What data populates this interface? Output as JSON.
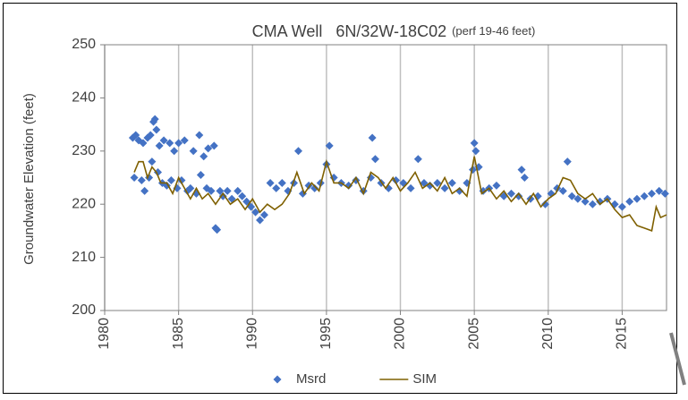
{
  "chart_data": {
    "type": "scatter",
    "title": "CMA Well   6N/32W-18C02",
    "subtitle": "(perf 19-46 feet)",
    "y_label": "Groundwater Elevation (feet)",
    "xlim": [
      1980,
      2018
    ],
    "xticks": [
      1980,
      1985,
      1990,
      1995,
      2000,
      2005,
      2010,
      2015
    ],
    "ylim": [
      200,
      250
    ],
    "yticks": [
      200,
      210,
      220,
      230,
      240,
      250
    ],
    "grid": "x",
    "legend": "bottom",
    "series": [
      {
        "name": "Msrd",
        "color": "#4472c4",
        "marker": "diamond",
        "x": [
          1981.9,
          1982.0,
          1982.1,
          1982.3,
          1982.5,
          1982.6,
          1982.7,
          1982.9,
          1983.0,
          1983.1,
          1983.2,
          1983.3,
          1983.4,
          1983.5,
          1983.6,
          1983.7,
          1983.9,
          1984.0,
          1984.2,
          1984.4,
          1984.5,
          1984.7,
          1984.9,
          1985.0,
          1985.2,
          1985.4,
          1985.6,
          1985.8,
          1986.0,
          1986.2,
          1986.4,
          1986.5,
          1986.7,
          1986.9,
          1987.0,
          1987.2,
          1987.4,
          1987.5,
          1987.6,
          1987.8,
          1988.0,
          1988.3,
          1988.6,
          1989.0,
          1989.3,
          1989.6,
          1989.9,
          1990.2,
          1990.5,
          1990.8,
          1991.2,
          1991.6,
          1992.0,
          1992.4,
          1992.8,
          1993.1,
          1993.4,
          1993.8,
          1994.2,
          1994.6,
          1995.0,
          1995.2,
          1995.5,
          1996.0,
          1996.5,
          1997.0,
          1997.5,
          1998.0,
          1998.1,
          1998.3,
          1998.7,
          1999.2,
          1999.7,
          2000.2,
          2000.7,
          2001.2,
          2001.6,
          2002.0,
          2002.5,
          2003.0,
          2003.5,
          2004.0,
          2004.5,
          2004.9,
          2005.0,
          2005.1,
          2005.3,
          2005.6,
          2006.0,
          2006.5,
          2007.0,
          2007.5,
          2008.0,
          2008.2,
          2008.4,
          2008.8,
          2009.3,
          2009.8,
          2010.2,
          2010.6,
          2011.0,
          2011.3,
          2011.6,
          2012.0,
          2012.5,
          2013.0,
          2013.5,
          2014.0,
          2014.5,
          2015.0,
          2015.5,
          2016.0,
          2016.5,
          2017.0,
          2017.5,
          2017.9
        ],
        "values": [
          232.5,
          225,
          233,
          232,
          224.5,
          231.5,
          222.5,
          232.5,
          225,
          233,
          228,
          235.5,
          236,
          234,
          226,
          231,
          224,
          232,
          223.5,
          231.5,
          224.5,
          230,
          223,
          231.5,
          224.5,
          232,
          222.5,
          223,
          230,
          222,
          233,
          225.5,
          229,
          223,
          230.5,
          222.5,
          231,
          215.5,
          215.2,
          222.5,
          221.5,
          222.5,
          221,
          222.5,
          221.5,
          220.5,
          219.5,
          218.5,
          217,
          218,
          224,
          223,
          224,
          222.5,
          224,
          230,
          222,
          223.5,
          223,
          224,
          227.5,
          231,
          225,
          224,
          223.5,
          224.5,
          222.5,
          225,
          232.5,
          228.5,
          224,
          223,
          224.5,
          224,
          223,
          228.5,
          224,
          223.5,
          224,
          223,
          224,
          222.5,
          224,
          226.5,
          231.5,
          230,
          227,
          222.5,
          223,
          223.5,
          221.5,
          222,
          221.5,
          226.5,
          225,
          221,
          221.5,
          220,
          222,
          223,
          222.5,
          228,
          221.5,
          221,
          220.5,
          220,
          220.5,
          221,
          220,
          219.5,
          220.5,
          221,
          221.5,
          222,
          222.5,
          222
        ]
      },
      {
        "name": "SIM",
        "color": "#7f6000",
        "marker": "line",
        "x": [
          1982,
          1982.3,
          1982.6,
          1982.9,
          1983.2,
          1983.5,
          1983.8,
          1984.2,
          1984.6,
          1985,
          1985.4,
          1985.8,
          1986.2,
          1986.6,
          1987,
          1987.5,
          1988,
          1988.5,
          1989,
          1989.5,
          1990,
          1990.5,
          1991,
          1991.5,
          1992,
          1992.5,
          1993,
          1993.5,
          1994,
          1994.5,
          1995,
          1995.5,
          1996,
          1996.5,
          1997,
          1997.5,
          1998,
          1998.5,
          1999,
          1999.5,
          2000,
          2000.5,
          2001,
          2001.5,
          2002,
          2002.5,
          2003,
          2003.5,
          2004,
          2004.5,
          2005,
          2005.5,
          2006,
          2006.5,
          2007,
          2007.5,
          2008,
          2008.5,
          2009,
          2009.5,
          2010,
          2010.5,
          2011,
          2011.5,
          2012,
          2012.5,
          2013,
          2013.5,
          2014,
          2014.5,
          2015,
          2015.5,
          2016,
          2016.5,
          2017,
          2017.3,
          2017.6,
          2018
        ],
        "values": [
          226,
          228,
          228,
          225,
          227,
          226,
          224,
          224,
          222,
          225,
          223,
          221,
          223,
          221,
          222,
          220,
          222,
          220,
          221,
          219,
          221,
          218.5,
          220,
          219,
          220,
          222,
          226,
          222,
          224,
          222.5,
          228,
          224,
          224,
          223,
          225,
          222,
          226,
          225,
          223,
          225,
          222.5,
          224,
          226,
          223,
          224,
          222.5,
          225,
          222,
          223,
          221.5,
          229,
          222,
          223,
          221,
          222.5,
          220.5,
          222,
          220,
          222,
          219.5,
          221,
          222,
          225,
          224.5,
          222,
          221,
          222,
          220,
          221,
          219,
          217.5,
          218,
          216,
          215.5,
          215,
          219.5,
          217.5,
          218
        ]
      }
    ]
  }
}
